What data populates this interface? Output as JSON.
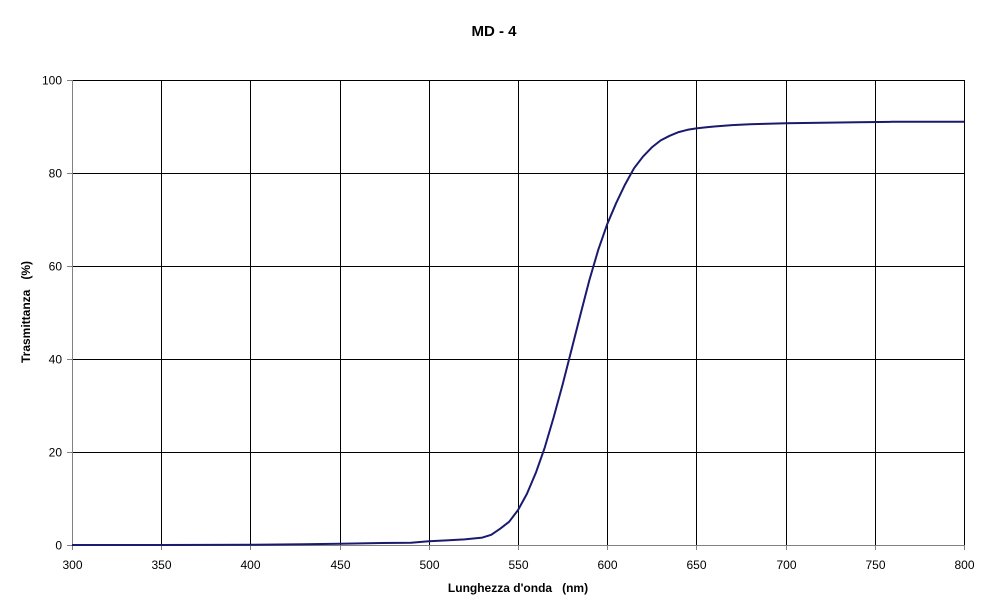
{
  "chart_data": {
    "type": "line",
    "title": "MD - 4",
    "xlabel": "Lunghezza d'onda   (nm)",
    "ylabel": "Trasmittanza   (%)",
    "xlim": [
      300,
      800
    ],
    "ylim": [
      0,
      100
    ],
    "xticks": [
      300,
      350,
      400,
      450,
      500,
      550,
      600,
      650,
      700,
      750,
      800
    ],
    "yticks": [
      0,
      20,
      40,
      60,
      80,
      100
    ],
    "xtick_labels": [
      "300",
      "350",
      "400",
      "450",
      "500",
      "550",
      "600",
      "650",
      "700",
      "750",
      "800"
    ],
    "ytick_labels": [
      "0",
      "20",
      "40",
      "60",
      "80",
      "100"
    ],
    "grid": true,
    "legend": "none",
    "series": [
      {
        "color": "#1a1a6e",
        "x": [
          300,
          350,
          400,
          430,
          450,
          470,
          490,
          500,
          510,
          520,
          530,
          535,
          540,
          545,
          550,
          555,
          560,
          565,
          570,
          575,
          580,
          585,
          590,
          595,
          600,
          605,
          610,
          615,
          620,
          625,
          630,
          635,
          640,
          645,
          650,
          655,
          660,
          670,
          680,
          690,
          700,
          720,
          740,
          760,
          780,
          800
        ],
        "y": [
          0.0,
          0.0,
          0.05,
          0.15,
          0.25,
          0.4,
          0.5,
          0.8,
          1.0,
          1.2,
          1.6,
          2.2,
          3.5,
          5.0,
          7.5,
          11.0,
          15.5,
          21.0,
          27.5,
          34.5,
          42.0,
          49.5,
          57.0,
          63.5,
          69.0,
          73.5,
          77.5,
          81.0,
          83.5,
          85.5,
          87.0,
          88.0,
          88.8,
          89.3,
          89.6,
          89.8,
          90.0,
          90.3,
          90.5,
          90.6,
          90.7,
          90.8,
          90.9,
          91.0,
          91.0,
          91.0
        ]
      }
    ]
  }
}
